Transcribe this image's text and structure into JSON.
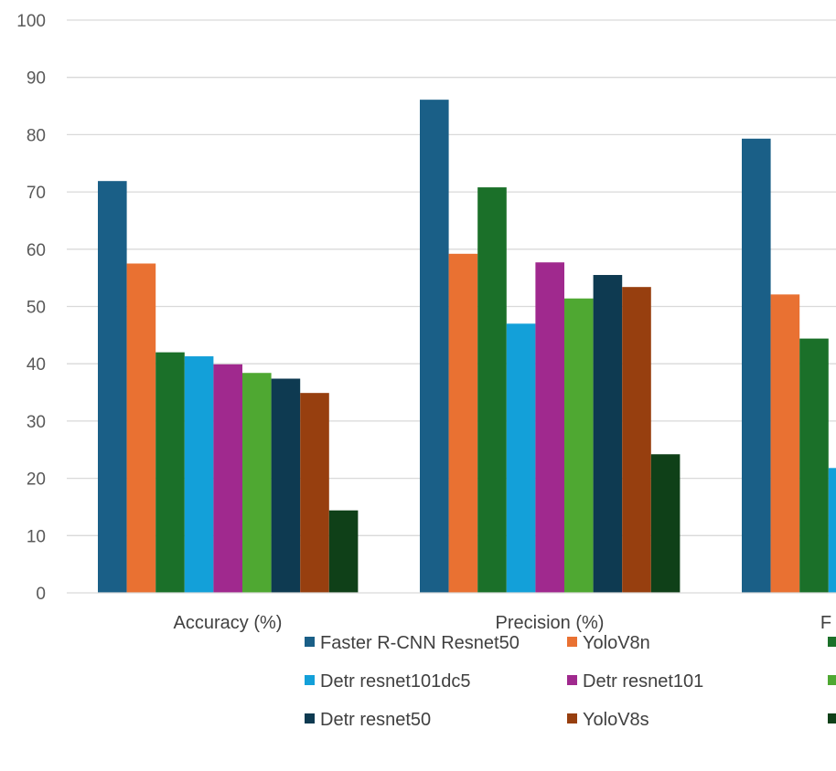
{
  "chart_data": {
    "type": "bar",
    "categories": [
      "Accuracy (%)",
      "Precision (%)",
      "F"
    ],
    "ylim": [
      0,
      100
    ],
    "yticks": [
      0,
      10,
      20,
      30,
      40,
      50,
      60,
      70,
      80,
      90,
      100
    ],
    "grid": true,
    "legend_position": "bottom",
    "series": [
      {
        "name": "Faster R-CNN Resnet50",
        "color": "#1a5f87",
        "values": [
          71.9,
          86.1,
          79.3
        ]
      },
      {
        "name": "YoloV8n",
        "color": "#e97132",
        "values": [
          57.5,
          59.2,
          52.1
        ]
      },
      {
        "name": "",
        "color": "#1b7029",
        "values": [
          42.0,
          70.8,
          44.4
        ]
      },
      {
        "name": "Detr resnet101dc5",
        "color": "#13a0d9",
        "values": [
          41.3,
          47.0,
          21.8
        ]
      },
      {
        "name": "Detr resnet101",
        "color": "#a0298e",
        "values": [
          39.9,
          57.7,
          null
        ]
      },
      {
        "name": "",
        "color": "#4fa832",
        "values": [
          38.4,
          51.4,
          null
        ]
      },
      {
        "name": "Detr resnet50",
        "color": "#0e3a51",
        "values": [
          37.4,
          55.5,
          null
        ]
      },
      {
        "name": "YoloV8s",
        "color": "#973f0f",
        "values": [
          34.9,
          53.4,
          null
        ]
      },
      {
        "name": "",
        "color": "#0f4018",
        "values": [
          14.4,
          24.2,
          null
        ]
      }
    ]
  }
}
